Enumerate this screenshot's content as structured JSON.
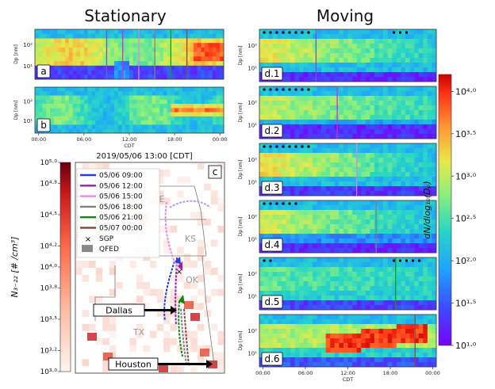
{
  "figure": {
    "headers": {
      "left": "Stationary",
      "right": "Moving"
    },
    "colors": {
      "vline_purple": "#7b52c9",
      "vline_magenta": "#cc33cc",
      "vline_pink": "#e080e0",
      "vline_gray": "#808080",
      "vline_green": "#10a010",
      "vline_brown": "#8b4b3b"
    }
  },
  "chart_data": [
    {
      "id": "a",
      "type": "heatmap",
      "panel_label": "a",
      "ylabel": "Dp [nm]",
      "yscale": "log",
      "yticks": [
        "10²",
        "10¹"
      ],
      "vlines": [
        "vline_purple",
        "vline_magenta",
        "vline_pink",
        "vline_gray",
        "vline_green",
        "vline_brown"
      ],
      "dots_left": 0,
      "dots_right": 0,
      "pattern": "stationary_a"
    },
    {
      "id": "b",
      "type": "heatmap",
      "panel_label": "b",
      "ylabel": "Dp [nm]",
      "yscale": "log",
      "yticks": [
        "10²",
        "10¹"
      ],
      "xlabel": "CDT",
      "xticks": [
        "00:00",
        "06:00",
        "12:00",
        "18:00",
        "00:00"
      ],
      "pattern": "stationary_b"
    },
    {
      "id": "d.1",
      "type": "heatmap",
      "panel_label": "d.1",
      "ylabel": "Dp [nm]",
      "yticks": [
        "10²",
        "10¹"
      ],
      "vline": "vline_purple",
      "vline_x": 0.32,
      "dots_left": 8,
      "dots_right": 3,
      "pattern": "moving_1"
    },
    {
      "id": "d.2",
      "type": "heatmap",
      "panel_label": "d.2",
      "ylabel": "Dp [nm]",
      "yticks": [
        "10²",
        "10¹"
      ],
      "vline": "vline_magenta",
      "vline_x": 0.44,
      "dots_left": 8,
      "dots_right": 0,
      "pattern": "moving_2"
    },
    {
      "id": "d.3",
      "type": "heatmap",
      "panel_label": "d.3",
      "ylabel": "Dp [nm]",
      "yticks": [
        "10²",
        "10¹"
      ],
      "vline": "vline_pink",
      "vline_x": 0.55,
      "dots_left": 8,
      "dots_right": 0,
      "pattern": "moving_3"
    },
    {
      "id": "d.4",
      "type": "heatmap",
      "panel_label": "d.4",
      "ylabel": "Dp [nm]",
      "yticks": [
        "10²",
        "10¹"
      ],
      "vline": "vline_gray",
      "vline_x": 0.66,
      "dots_left": 6,
      "dots_right": 0,
      "pattern": "moving_4"
    },
    {
      "id": "d.5",
      "type": "heatmap",
      "panel_label": "d.5",
      "ylabel": "Dp [nm]",
      "yticks": [
        "10²",
        "10¹"
      ],
      "vline": "vline_green",
      "vline_x": 0.77,
      "dots_left": 2,
      "dots_right": 5,
      "pattern": "moving_5"
    },
    {
      "id": "d.6",
      "type": "heatmap",
      "panel_label": "d.6",
      "ylabel": "Dp [nm]",
      "yticks": [
        "10²",
        "10¹"
      ],
      "vline": "vline_brown",
      "vline_x": 0.88,
      "dots_left": 0,
      "dots_right": 0,
      "pattern": "moving_6",
      "xlabel": "CDT",
      "xticks": [
        "00:00",
        "06:00",
        "12:00",
        "18:00",
        "00:00"
      ]
    },
    {
      "id": "colorbar-right",
      "type": "colorbar",
      "label": "dN/dlog₁₀(Dₚ)",
      "range": [
        1.0,
        4.2
      ],
      "ticks": [
        {
          "value": 4.0,
          "label": "10⁴·⁰"
        },
        {
          "value": 3.5,
          "label": "10³·⁵"
        },
        {
          "value": 3.0,
          "label": "10³·⁰"
        },
        {
          "value": 2.5,
          "label": "10²·⁵"
        },
        {
          "value": 2.0,
          "label": "10²·⁰"
        },
        {
          "value": 1.5,
          "label": "10¹·⁵"
        },
        {
          "value": 1.0,
          "label": "10¹·⁰"
        }
      ]
    },
    {
      "id": "map-c",
      "type": "map",
      "panel_label": "c",
      "title": "2019/05/06  13:00 [CDT]",
      "legend": [
        {
          "label": "05/06 09:00",
          "color": "#1f3fd8"
        },
        {
          "label": "05/06 12:00",
          "color": "#9a1fb0"
        },
        {
          "label": "05/06 15:00",
          "color": "#e68ae6"
        },
        {
          "label": "05/06 18:00",
          "color": "#808080"
        },
        {
          "label": "05/06 21:00",
          "color": "#118811"
        },
        {
          "label": "05/07 00:00",
          "color": "#8b4b3b"
        },
        {
          "label": "SGP",
          "marker": "×"
        },
        {
          "label": "QFED",
          "marker": "square"
        }
      ],
      "states": [
        "NE",
        "KS",
        "OK",
        "TX"
      ],
      "cities": [
        "Dallas",
        "Houston"
      ]
    },
    {
      "id": "colorbar-left",
      "type": "colorbar",
      "label": "N₃₋₂₂ [# /cm³]",
      "range": [
        3.0,
        5.0
      ],
      "ticks": [
        {
          "value": 5.0,
          "label": "10⁵·⁰"
        },
        {
          "value": 4.8,
          "label": "10⁴·⁸"
        },
        {
          "value": 4.5,
          "label": "10⁴·⁵"
        },
        {
          "value": 4.2,
          "label": "10⁴·²"
        },
        {
          "value": 4.0,
          "label": "10⁴·⁰"
        },
        {
          "value": 3.8,
          "label": "10³·⁸"
        },
        {
          "value": 3.5,
          "label": "10³·⁵"
        },
        {
          "value": 3.2,
          "label": "10³·²"
        },
        {
          "value": 3.0,
          "label": "10³·⁰"
        }
      ]
    }
  ]
}
